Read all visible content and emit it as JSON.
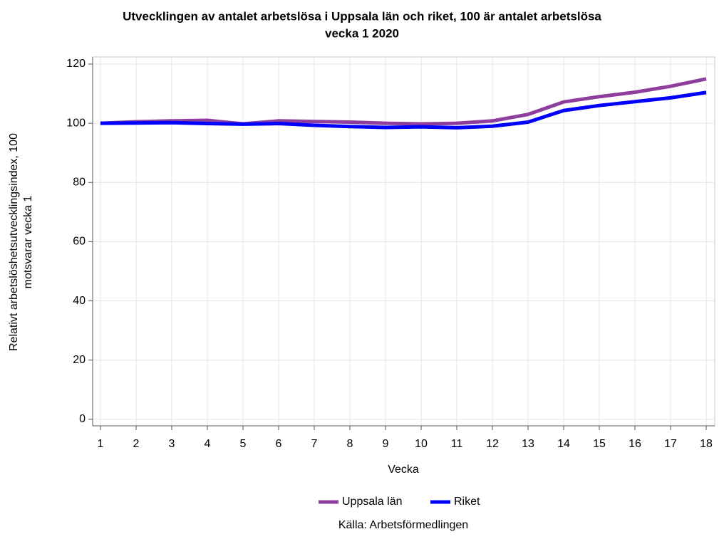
{
  "chart_data": {
    "type": "line",
    "title": [
      "Utvecklingen av antalet arbetslösa i Uppsala län och riket, 100 är antalet arbetslösa",
      "vecka 1 2020"
    ],
    "x_label": "Vecka",
    "y_label": [
      "Relativt arbetslöshetsutvecklingsindex, 100",
      "motsvarar vecka 1"
    ],
    "note": "Källa: Arbetsförmedlingen",
    "x": [
      1,
      2,
      3,
      4,
      5,
      6,
      7,
      8,
      9,
      10,
      11,
      12,
      13,
      14,
      15,
      16,
      17,
      18
    ],
    "series": [
      {
        "name": "Uppsala län",
        "color": "#8e3f9e",
        "values": [
          100,
          100.5,
          100.8,
          101,
          99.8,
          100.8,
          100.6,
          100.4,
          100,
          99.8,
          100,
          100.8,
          103,
          107.2,
          109,
          110.5,
          112.5,
          115
        ]
      },
      {
        "name": "Riket",
        "color": "#0000ff",
        "values": [
          100,
          100.1,
          100.2,
          99.9,
          99.7,
          99.9,
          99.3,
          98.9,
          98.6,
          98.8,
          98.5,
          99,
          100.4,
          104.3,
          106,
          107.3,
          108.6,
          110.4
        ]
      }
    ],
    "xlim": [
      0.78,
      18.24
    ],
    "xticks": [
      1,
      2,
      3,
      4,
      5,
      6,
      7,
      8,
      9,
      10,
      11,
      12,
      13,
      14,
      15,
      16,
      17,
      18
    ],
    "ylim": [
      -2.2,
      122.4
    ],
    "yticks": [
      0,
      20,
      40,
      60,
      80,
      100,
      120
    ],
    "grid": true,
    "legend": "bottom"
  }
}
